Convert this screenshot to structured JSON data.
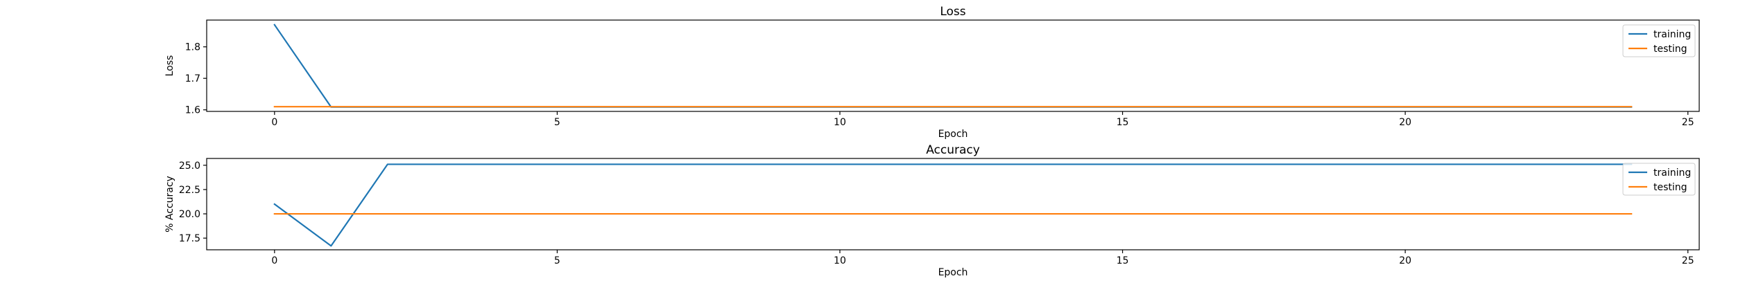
{
  "chart_data": [
    {
      "type": "line",
      "title": "Loss",
      "xlabel": "Epoch",
      "ylabel": "Loss",
      "xlim": [
        -1.2,
        25.2
      ],
      "ylim": [
        1.595,
        1.885
      ],
      "xticks": [
        0,
        5,
        10,
        15,
        20,
        25
      ],
      "yticks": [
        1.6,
        1.7,
        1.8
      ],
      "ytick_labels": [
        "1.6",
        "1.7",
        "1.8"
      ],
      "grid": false,
      "legend": "top-right",
      "series": [
        {
          "name": "training",
          "color": "#1f77b4",
          "x": [
            0,
            1,
            2,
            3,
            4,
            5,
            6,
            7,
            8,
            9,
            10,
            11,
            12,
            13,
            14,
            15,
            16,
            17,
            18,
            19,
            20,
            21,
            22,
            23,
            24
          ],
          "values": [
            1.87,
            1.609,
            1.609,
            1.609,
            1.609,
            1.609,
            1.609,
            1.609,
            1.609,
            1.609,
            1.609,
            1.609,
            1.609,
            1.609,
            1.609,
            1.609,
            1.609,
            1.609,
            1.609,
            1.609,
            1.609,
            1.609,
            1.609,
            1.609,
            1.609
          ]
        },
        {
          "name": "testing",
          "color": "#ff7f0e",
          "x": [
            0,
            1,
            2,
            3,
            4,
            5,
            6,
            7,
            8,
            9,
            10,
            11,
            12,
            13,
            14,
            15,
            16,
            17,
            18,
            19,
            20,
            21,
            22,
            23,
            24
          ],
          "values": [
            1.61,
            1.61,
            1.61,
            1.61,
            1.61,
            1.61,
            1.61,
            1.61,
            1.61,
            1.61,
            1.61,
            1.61,
            1.61,
            1.61,
            1.61,
            1.61,
            1.61,
            1.61,
            1.61,
            1.61,
            1.61,
            1.61,
            1.61,
            1.61,
            1.61
          ]
        }
      ]
    },
    {
      "type": "line",
      "title": "Accuracy",
      "xlabel": "Epoch",
      "ylabel": "% Accuracy",
      "xlim": [
        -1.2,
        25.2
      ],
      "ylim": [
        16.3,
        25.7
      ],
      "xticks": [
        0,
        5,
        10,
        15,
        20,
        25
      ],
      "yticks": [
        17.5,
        20.0,
        22.5,
        25.0
      ],
      "ytick_labels": [
        "17.5",
        "20.0",
        "22.5",
        "25.0"
      ],
      "grid": false,
      "legend": "top-right",
      "series": [
        {
          "name": "training",
          "color": "#1f77b4",
          "x": [
            0,
            1,
            2,
            3,
            4,
            5,
            6,
            7,
            8,
            9,
            10,
            11,
            12,
            13,
            14,
            15,
            16,
            17,
            18,
            19,
            20,
            21,
            22,
            23,
            24
          ],
          "values": [
            21.0,
            16.7,
            25.1,
            25.1,
            25.1,
            25.1,
            25.1,
            25.1,
            25.1,
            25.1,
            25.1,
            25.1,
            25.1,
            25.1,
            25.1,
            25.1,
            25.1,
            25.1,
            25.1,
            25.1,
            25.1,
            25.1,
            25.1,
            25.1,
            25.1
          ]
        },
        {
          "name": "testing",
          "color": "#ff7f0e",
          "x": [
            0,
            1,
            2,
            3,
            4,
            5,
            6,
            7,
            8,
            9,
            10,
            11,
            12,
            13,
            14,
            15,
            16,
            17,
            18,
            19,
            20,
            21,
            22,
            23,
            24
          ],
          "values": [
            20.0,
            20.0,
            20.0,
            20.0,
            20.0,
            20.0,
            20.0,
            20.0,
            20.0,
            20.0,
            20.0,
            20.0,
            20.0,
            20.0,
            20.0,
            20.0,
            20.0,
            20.0,
            20.0,
            20.0,
            20.0,
            20.0,
            20.0,
            20.0,
            20.0
          ]
        }
      ]
    }
  ]
}
